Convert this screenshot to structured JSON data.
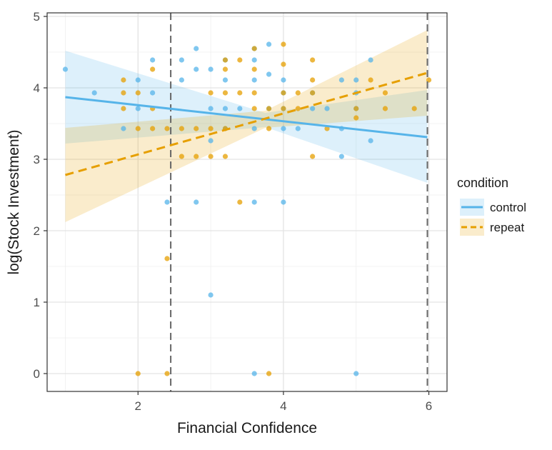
{
  "chart_data": {
    "type": "scatter",
    "xlabel": "Financial Confidence",
    "ylabel": "log(Stock Investment)",
    "xlim": [
      0.75,
      6.25
    ],
    "ylim": [
      -0.25,
      5.05
    ],
    "x_ticks": [
      2,
      4,
      6
    ],
    "y_ticks": [
      0,
      1,
      2,
      3,
      4,
      5
    ],
    "grid": true,
    "legend_title": "condition",
    "legend_position": "right",
    "vlines": [
      2.45,
      5.98
    ],
    "series": [
      {
        "name": "control",
        "color": "#56B4E9",
        "line_style": "solid",
        "points": [
          [
            1.0,
            4.26
          ],
          [
            1.4,
            3.93
          ],
          [
            1.8,
            3.43
          ],
          [
            2.0,
            4.11
          ],
          [
            2.0,
            3.71
          ],
          [
            2.2,
            4.39
          ],
          [
            2.2,
            3.93
          ],
          [
            2.4,
            2.4
          ],
          [
            2.6,
            4.39
          ],
          [
            2.6,
            4.11
          ],
          [
            2.8,
            4.55
          ],
          [
            2.8,
            4.26
          ],
          [
            2.8,
            2.4
          ],
          [
            3.0,
            4.26
          ],
          [
            3.0,
            3.71
          ],
          [
            3.0,
            3.26
          ],
          [
            3.0,
            1.1
          ],
          [
            3.2,
            4.39
          ],
          [
            3.2,
            4.11
          ],
          [
            3.2,
            3.71
          ],
          [
            3.2,
            3.43
          ],
          [
            3.4,
            3.71
          ],
          [
            3.6,
            4.55
          ],
          [
            3.6,
            4.39
          ],
          [
            3.6,
            4.11
          ],
          [
            3.6,
            3.43
          ],
          [
            3.6,
            2.4
          ],
          [
            3.6,
            0.0
          ],
          [
            3.8,
            4.61
          ],
          [
            3.8,
            4.19
          ],
          [
            3.8,
            3.71
          ],
          [
            4.0,
            4.11
          ],
          [
            4.0,
            3.93
          ],
          [
            4.0,
            3.71
          ],
          [
            4.0,
            3.43
          ],
          [
            4.0,
            2.4
          ],
          [
            4.2,
            3.43
          ],
          [
            4.4,
            3.71
          ],
          [
            4.4,
            3.93
          ],
          [
            4.6,
            3.71
          ],
          [
            4.8,
            4.11
          ],
          [
            4.8,
            3.43
          ],
          [
            4.8,
            3.04
          ],
          [
            5.0,
            4.11
          ],
          [
            5.0,
            3.93
          ],
          [
            5.0,
            3.71
          ],
          [
            5.0,
            0.0
          ],
          [
            5.2,
            4.39
          ],
          [
            5.2,
            3.26
          ]
        ],
        "fit_line": [
          [
            1.0,
            3.87
          ],
          [
            5.98,
            3.31
          ]
        ],
        "ci_band": {
          "x": [
            1.0,
            3.75,
            5.98
          ],
          "lower": [
            3.22,
            3.45,
            2.67
          ],
          "upper": [
            4.52,
            3.65,
            3.97
          ]
        }
      },
      {
        "name": "repeat",
        "color": "#E69F00",
        "line_style": "dashed",
        "points": [
          [
            1.8,
            4.11
          ],
          [
            1.8,
            3.93
          ],
          [
            1.8,
            3.71
          ],
          [
            2.0,
            3.93
          ],
          [
            2.0,
            3.43
          ],
          [
            2.2,
            4.26
          ],
          [
            2.2,
            3.71
          ],
          [
            2.2,
            3.43
          ],
          [
            2.4,
            3.43
          ],
          [
            2.4,
            1.61
          ],
          [
            2.0,
            0.0
          ],
          [
            2.4,
            0.0
          ],
          [
            2.6,
            3.43
          ],
          [
            2.6,
            3.04
          ],
          [
            2.8,
            3.43
          ],
          [
            2.8,
            3.04
          ],
          [
            3.0,
            3.93
          ],
          [
            3.0,
            3.43
          ],
          [
            3.0,
            3.04
          ],
          [
            3.2,
            4.39
          ],
          [
            3.2,
            4.26
          ],
          [
            3.2,
            3.93
          ],
          [
            3.2,
            3.43
          ],
          [
            3.2,
            3.04
          ],
          [
            3.4,
            4.39
          ],
          [
            3.4,
            3.93
          ],
          [
            3.4,
            2.4
          ],
          [
            3.6,
            4.55
          ],
          [
            3.6,
            4.26
          ],
          [
            3.6,
            3.93
          ],
          [
            3.6,
            3.71
          ],
          [
            3.8,
            3.71
          ],
          [
            3.8,
            3.43
          ],
          [
            3.8,
            0.0
          ],
          [
            4.0,
            4.61
          ],
          [
            4.0,
            4.33
          ],
          [
            4.0,
            3.93
          ],
          [
            4.0,
            3.71
          ],
          [
            4.2,
            3.93
          ],
          [
            4.2,
            3.71
          ],
          [
            4.4,
            4.39
          ],
          [
            4.4,
            4.11
          ],
          [
            4.4,
            3.93
          ],
          [
            4.4,
            3.04
          ],
          [
            4.6,
            3.43
          ],
          [
            5.0,
            3.71
          ],
          [
            5.0,
            3.58
          ],
          [
            5.2,
            4.11
          ],
          [
            5.4,
            3.93
          ],
          [
            5.4,
            3.71
          ],
          [
            5.8,
            3.71
          ],
          [
            6.0,
            4.11
          ]
        ],
        "fit_line": [
          [
            1.0,
            2.78
          ],
          [
            5.98,
            4.21
          ]
        ],
        "ci_band": {
          "x": [
            1.0,
            3.75,
            5.98
          ],
          "lower": [
            2.12,
            3.44,
            3.61
          ],
          "upper": [
            3.44,
            3.68,
            4.81
          ]
        }
      }
    ]
  }
}
